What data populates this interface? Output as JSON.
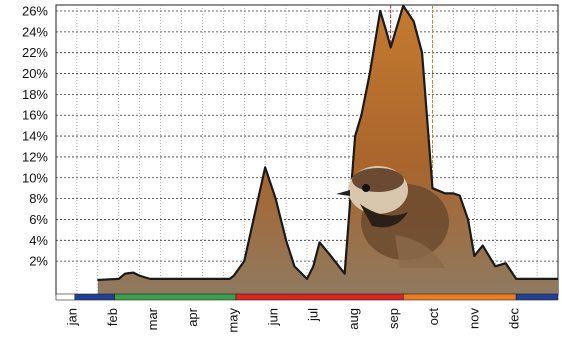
{
  "chart_data": {
    "type": "area",
    "title": "",
    "xlabel": "",
    "ylabel": "",
    "y_unit": "%",
    "ylim": [
      0,
      26
    ],
    "y_ticks": [
      2,
      4,
      6,
      8,
      10,
      12,
      14,
      16,
      18,
      20,
      22,
      24,
      26
    ],
    "y_tick_labels": [
      "2%",
      "4%",
      "6%",
      "8%",
      "10%",
      "12%",
      "14%",
      "16%",
      "18%",
      "20%",
      "22%",
      "24%",
      "26%"
    ],
    "months": [
      "jan",
      "feb",
      "mar",
      "apr",
      "may",
      "jun",
      "jul",
      "aug",
      "sep",
      "oct",
      "nov",
      "dec"
    ],
    "grid": true,
    "series": [
      {
        "x": [
          1.0,
          1.5,
          1.65,
          1.85,
          2.0,
          2.25,
          4.0,
          4.15,
          4.25,
          4.5,
          4.75,
          5.0,
          5.25,
          5.5,
          5.7,
          6.0,
          6.15,
          6.3,
          6.55,
          6.9,
          7.15,
          7.3,
          7.5,
          7.75,
          7.9,
          8.0,
          8.3,
          8.55,
          8.75,
          9.0,
          9.3,
          9.5,
          9.65,
          9.85,
          10.0,
          10.2,
          10.5,
          10.75,
          11.0,
          12.0
        ],
        "y": [
          0.2,
          0.3,
          0.8,
          0.9,
          0.6,
          0.3,
          0.3,
          0.3,
          0.6,
          2.0,
          6.5,
          11.0,
          8.0,
          4.0,
          1.5,
          0.3,
          1.5,
          3.8,
          2.6,
          0.8,
          14.0,
          16.0,
          20.0,
          26.0,
          24.0,
          22.5,
          26.5,
          25.0,
          22.0,
          9.0,
          8.5,
          8.5,
          8.3,
          6.0,
          2.5,
          3.5,
          1.5,
          1.8,
          0.3,
          0.3
        ],
        "color": "#b5651d",
        "stroke": "#1a1a1a"
      }
    ],
    "season_bar": [
      {
        "from": 0.0,
        "to": 0.45,
        "color": "#ffffff"
      },
      {
        "from": 0.45,
        "to": 1.4,
        "color": "#1f3f99"
      },
      {
        "from": 1.4,
        "to": 4.3,
        "color": "#3aa14a"
      },
      {
        "from": 4.3,
        "to": 8.3,
        "color": "#e0231e"
      },
      {
        "from": 8.3,
        "to": 11.0,
        "color": "#f07a1c"
      },
      {
        "from": 11.0,
        "to": 12.0,
        "color": "#1f3f99"
      }
    ],
    "vertical_markers": [
      {
        "month": 8.0,
        "color": "#d02020"
      },
      {
        "month": 9.0,
        "color": "#e07a20"
      }
    ]
  }
}
